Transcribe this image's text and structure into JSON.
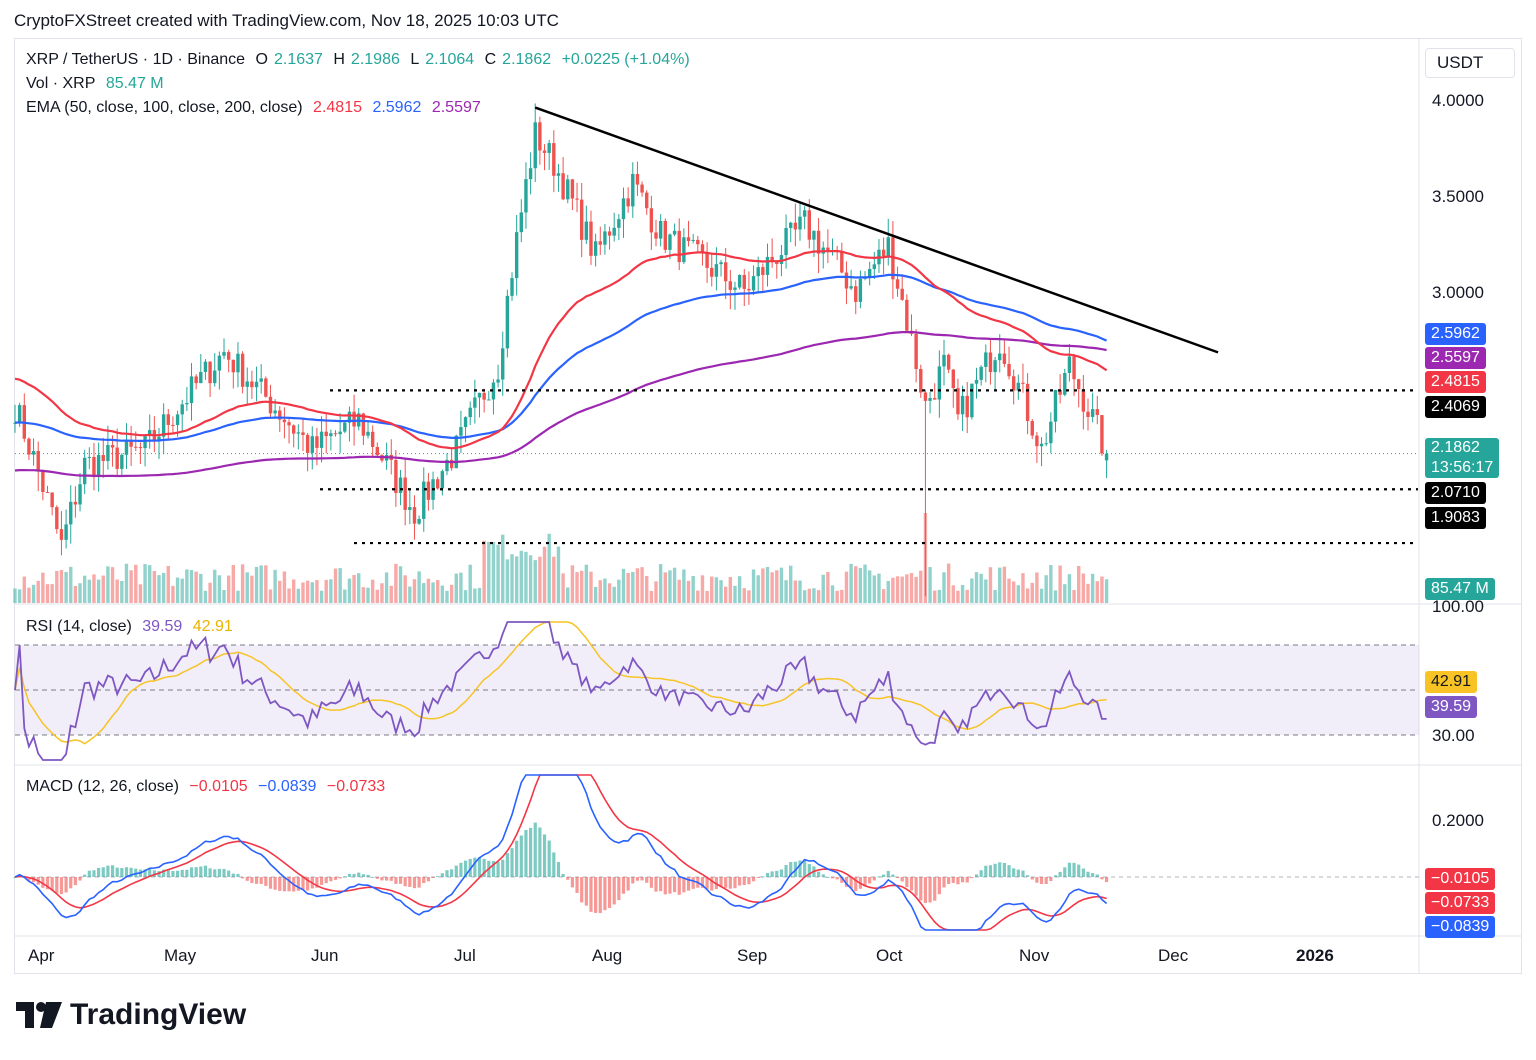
{
  "header": {
    "credit": "CryptoFXStreet created with TradingView.com, Nov 18, 2025 10:03 UTC"
  },
  "legend": {
    "symbol": "XRP / TetherUS · 1D · Binance",
    "o_label": "O",
    "o": "2.1637",
    "h_label": "H",
    "h": "2.1986",
    "l_label": "L",
    "l": "2.1064",
    "c_label": "C",
    "c": "2.1862",
    "change": "+0.0225 (+1.04%)",
    "vol_label": "Vol · XRP",
    "vol": "85.47 M",
    "ema_label": "EMA (50, close, 100, close, 200, close)",
    "ema50": "2.4815",
    "ema100": "2.5962",
    "ema200": "2.5597",
    "rsi_label": "RSI (14, close)",
    "rsi": "39.59",
    "rsi_ma": "42.91",
    "macd_label": "MACD (12, 26, close)",
    "macd_hist": "−0.0105",
    "macd": "−0.0839",
    "macd_signal": "−0.0733"
  },
  "price_axis": {
    "currency": "USDT",
    "ticks": [
      "4.0000",
      "3.5000",
      "3.0000"
    ],
    "tags": {
      "ema100": "2.5962",
      "ema200": "2.5597",
      "ema50": "2.4815",
      "level1": "2.4069",
      "last": "2.1862",
      "countdown": "13:56:17",
      "level2": "2.0710",
      "level3": "1.9083",
      "volume": "85.47 M"
    }
  },
  "rsi_axis": {
    "ticks": [
      "100.00",
      "30.00"
    ],
    "tags": {
      "rsi_ma": "42.91",
      "rsi": "39.59"
    }
  },
  "macd_axis": {
    "ticks": [
      "0.2000"
    ],
    "tags": {
      "hist": "−0.0105",
      "signal": "−0.0733",
      "macd": "−0.0839"
    }
  },
  "time_axis": {
    "labels": [
      "Apr",
      "May",
      "Jun",
      "Jul",
      "Aug",
      "Sep",
      "Oct",
      "Nov",
      "Dec",
      "2026"
    ]
  },
  "brand": {
    "name": "TradingView"
  },
  "colors": {
    "up": "#26a69a",
    "down": "#ef5350",
    "ema50": "#f23645",
    "ema100": "#2962ff",
    "ema200": "#9c27b0",
    "rsi": "#7e57c2",
    "rsi_ma": "#f7c325",
    "macd": "#2962ff",
    "signal": "#f23645"
  },
  "chart_data": {
    "type": "candlestick",
    "symbol": "XRP / TetherUS",
    "timeframe": "1D",
    "price_scale": "log",
    "x_range": [
      "2025-03-28",
      "2025-11-18"
    ],
    "y_range": [
      1.75,
      4.1
    ],
    "anchor_closes": [
      {
        "date": "2025-03-28",
        "close": 2.35
      },
      {
        "date": "2025-04-07",
        "close": 1.9
      },
      {
        "date": "2025-04-12",
        "close": 2.15
      },
      {
        "date": "2025-04-25",
        "close": 2.2
      },
      {
        "date": "2025-05-12",
        "close": 2.55
      },
      {
        "date": "2025-05-20",
        "close": 2.4
      },
      {
        "date": "2025-05-31",
        "close": 2.2
      },
      {
        "date": "2025-06-10",
        "close": 2.3
      },
      {
        "date": "2025-06-22",
        "close": 2.0
      },
      {
        "date": "2025-07-01",
        "close": 2.2
      },
      {
        "date": "2025-07-10",
        "close": 2.5
      },
      {
        "date": "2025-07-18",
        "close": 3.55
      },
      {
        "date": "2025-07-22",
        "close": 3.4
      },
      {
        "date": "2025-07-31",
        "close": 2.95
      },
      {
        "date": "2025-08-08",
        "close": 3.3
      },
      {
        "date": "2025-08-14",
        "close": 3.05
      },
      {
        "date": "2025-09-01",
        "close": 2.8
      },
      {
        "date": "2025-09-14",
        "close": 3.1
      },
      {
        "date": "2025-09-25",
        "close": 2.8
      },
      {
        "date": "2025-10-02",
        "close": 3.0
      },
      {
        "date": "2025-10-10",
        "close": 2.35
      },
      {
        "date": "2025-10-14",
        "close": 2.5
      },
      {
        "date": "2025-10-17",
        "close": 2.3
      },
      {
        "date": "2025-10-26",
        "close": 2.6
      },
      {
        "date": "2025-11-04",
        "close": 2.2
      },
      {
        "date": "2025-11-10",
        "close": 2.5
      },
      {
        "date": "2025-11-18",
        "close": 2.1862
      }
    ],
    "last_candle": {
      "date": "2025-11-18",
      "open": 2.1637,
      "high": 2.1986,
      "low": 2.1064,
      "close": 2.1862
    },
    "ema": {
      "ema50": 2.4815,
      "ema100": 2.5962,
      "ema200": 2.5597
    },
    "trendline": {
      "from": {
        "date": "2025-07-18",
        "price": 3.7
      },
      "to": {
        "date": "2025-12-12",
        "price": 2.55
      }
    },
    "horizontal_levels": [
      2.4069,
      2.071,
      1.9083
    ],
    "volume_last": "85.47 M",
    "rsi": {
      "value": 39.59,
      "ma": 42.91,
      "upper_band": 70,
      "lower_band": 30
    },
    "macd": {
      "hist": -0.0105,
      "macd": -0.0839,
      "signal": -0.0733
    }
  }
}
